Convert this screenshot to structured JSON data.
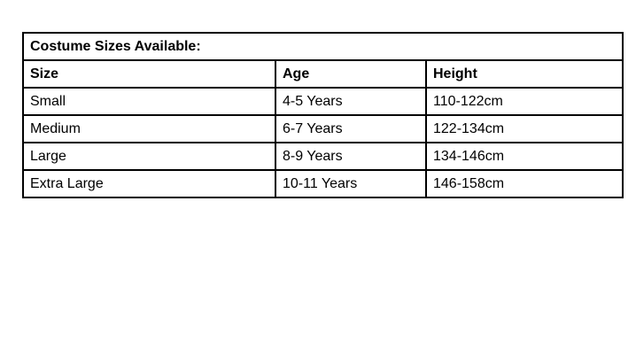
{
  "page": {
    "background": "#ffffff"
  },
  "table": {
    "title": "Costume Sizes Available:",
    "columns": [
      "Size",
      "Age",
      "Height"
    ],
    "rows": [
      {
        "size": "Small",
        "age": "4-5 Years",
        "height": "110-122cm"
      },
      {
        "size": "Medium",
        "age": "6-7 Years",
        "height": "122-134cm"
      },
      {
        "size": "Large",
        "age": "8-9 Years",
        "height": "134-146cm"
      },
      {
        "size": "Extra Large",
        "age": "10-11 Years",
        "height": "146-158cm"
      }
    ],
    "colors": {
      "border": "#000000",
      "text": "#000000",
      "background": "#ffffff"
    }
  }
}
